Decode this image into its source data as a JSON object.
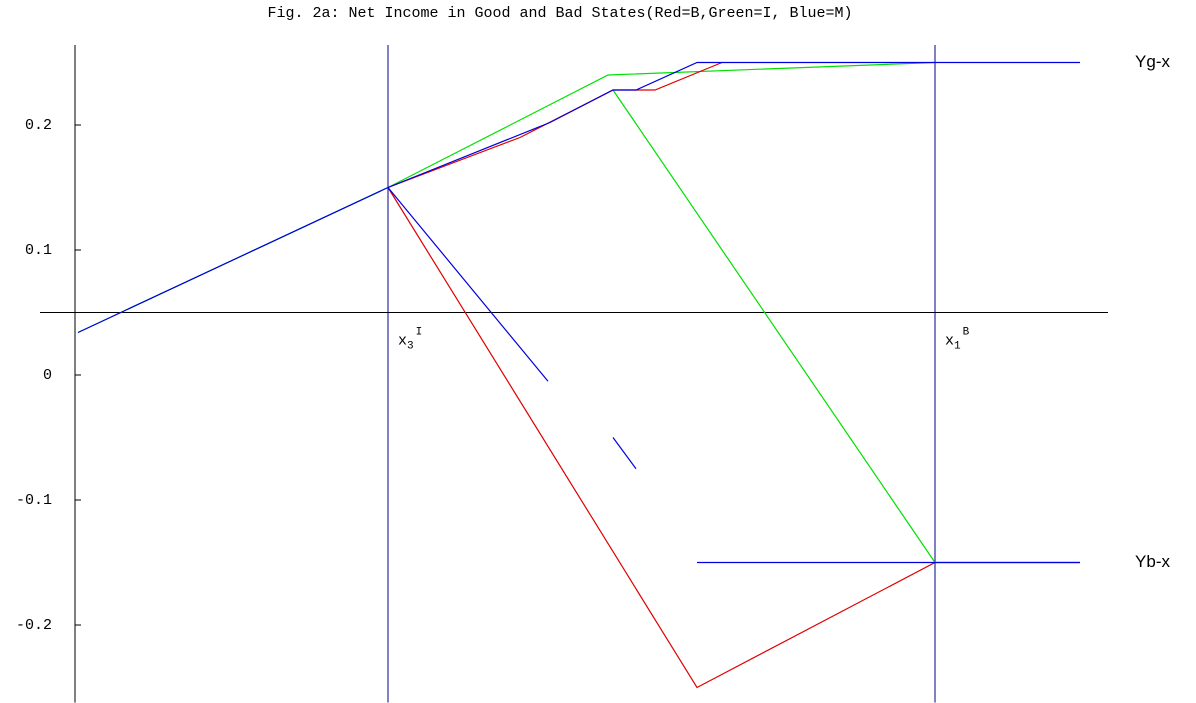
{
  "chart_data": {
    "type": "line",
    "title": "Fig. 2a:  Net Income in Good and Bad States(Red=B,Green=I, Blue=M)",
    "xlim": [
      -0.035,
      1.033
    ],
    "ylim": [
      -0.262,
      0.264
    ],
    "x_axis_at": 0.05,
    "yticks": [
      0.2,
      0.1,
      0,
      -0.1,
      -0.2
    ],
    "vlines": [
      {
        "x": 0.313,
        "base": "x",
        "sub": "3",
        "sup": "I",
        "color": "#00008b"
      },
      {
        "x": 0.86,
        "base": "x",
        "sub": "1",
        "sup": "B",
        "color": "#00008b"
      }
    ],
    "annotations": [
      {
        "text": "Yg-x",
        "y": 0.25
      },
      {
        "text": "Yb-x",
        "y": -0.15
      }
    ],
    "series": [
      {
        "color": "#00e000",
        "x": [
          0.003,
          0.313,
          0.533,
          0.86
        ],
        "values": [
          0.034,
          0.15,
          0.24,
          0.25
        ]
      },
      {
        "color": "#00e000",
        "x": [
          0.538,
          0.86
        ],
        "values": [
          0.228,
          -0.15
        ]
      },
      {
        "color": "#e00000",
        "x": [
          0.313,
          0.445,
          0.538,
          0.58,
          0.647
        ],
        "values": [
          0.15,
          0.19,
          0.228,
          0.228,
          0.25
        ]
      },
      {
        "color": "#e00000",
        "x": [
          0.313,
          0.622,
          0.86,
          1.005
        ],
        "values": [
          0.15,
          -0.25,
          -0.15,
          -0.15
        ]
      },
      {
        "color": "#0000e0",
        "x": [
          0.003,
          0.313,
          0.475,
          0.538,
          0.561,
          0.622,
          1.005
        ],
        "values": [
          0.034,
          0.15,
          0.202,
          0.228,
          0.228,
          0.25,
          0.25
        ]
      },
      {
        "color": "#0000e0",
        "x": [
          0.313,
          0.473,
          0.475,
          0.538,
          0.561,
          0.561,
          0.622,
          1.005
        ],
        "values": [
          0.15,
          -0.005,
          null,
          -0.05,
          -0.075,
          null,
          -0.15,
          -0.15
        ]
      }
    ]
  }
}
